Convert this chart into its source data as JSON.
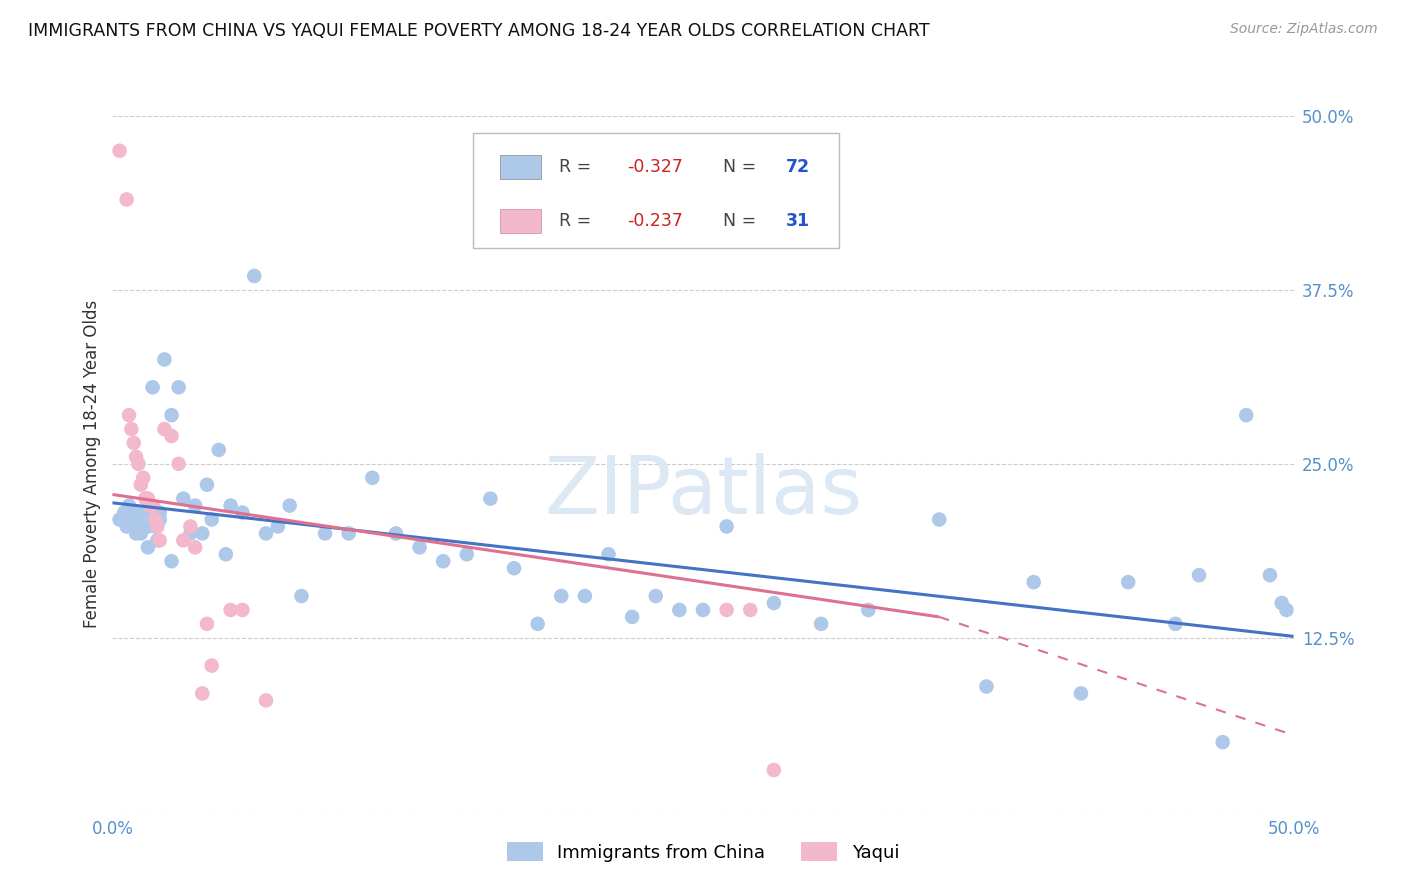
{
  "title": "IMMIGRANTS FROM CHINA VS YAQUI FEMALE POVERTY AMONG 18-24 YEAR OLDS CORRELATION CHART",
  "source": "Source: ZipAtlas.com",
  "ylabel": "Female Poverty Among 18-24 Year Olds",
  "xlim": [
    0.0,
    0.5
  ],
  "ylim": [
    0.0,
    0.5
  ],
  "yticks": [
    0.0,
    0.125,
    0.25,
    0.375,
    0.5
  ],
  "yticklabels": [
    "",
    "12.5%",
    "25.0%",
    "37.5%",
    "50.0%"
  ],
  "xtick_labels_show": [
    "0.0%",
    "50.0%"
  ],
  "watermark_text": "ZIPatlas",
  "blue_color": "#adc8e8",
  "pink_color": "#f4b8cc",
  "blue_line_color": "#4472c4",
  "pink_line_color": "#e07090",
  "blue_R": -0.327,
  "blue_N": 72,
  "pink_R": -0.237,
  "pink_N": 31,
  "blue_line_x0": 0.0,
  "blue_line_y0": 0.222,
  "blue_line_x1": 0.5,
  "blue_line_y1": 0.126,
  "pink_line_x0": 0.0,
  "pink_line_y0": 0.228,
  "pink_line_x1_solid": 0.35,
  "pink_line_y1_solid": 0.14,
  "pink_line_x1_dash": 0.5,
  "pink_line_y1_dash": 0.055,
  "china_x": [
    0.003,
    0.005,
    0.006,
    0.007,
    0.008,
    0.009,
    0.01,
    0.011,
    0.012,
    0.013,
    0.014,
    0.015,
    0.016,
    0.017,
    0.018,
    0.019,
    0.02,
    0.022,
    0.025,
    0.028,
    0.03,
    0.033,
    0.035,
    0.038,
    0.04,
    0.042,
    0.045,
    0.048,
    0.05,
    0.055,
    0.06,
    0.065,
    0.07,
    0.075,
    0.08,
    0.09,
    0.1,
    0.11,
    0.12,
    0.13,
    0.14,
    0.15,
    0.16,
    0.17,
    0.18,
    0.19,
    0.2,
    0.21,
    0.22,
    0.23,
    0.24,
    0.25,
    0.26,
    0.28,
    0.3,
    0.32,
    0.35,
    0.37,
    0.39,
    0.41,
    0.43,
    0.45,
    0.46,
    0.47,
    0.48,
    0.49,
    0.495,
    0.497,
    0.01,
    0.015,
    0.02,
    0.025
  ],
  "china_y": [
    0.21,
    0.215,
    0.205,
    0.22,
    0.215,
    0.21,
    0.205,
    0.215,
    0.2,
    0.21,
    0.225,
    0.205,
    0.215,
    0.305,
    0.205,
    0.195,
    0.21,
    0.325,
    0.285,
    0.305,
    0.225,
    0.2,
    0.22,
    0.2,
    0.235,
    0.21,
    0.26,
    0.185,
    0.22,
    0.215,
    0.385,
    0.2,
    0.205,
    0.22,
    0.155,
    0.2,
    0.2,
    0.24,
    0.2,
    0.19,
    0.18,
    0.185,
    0.225,
    0.175,
    0.135,
    0.155,
    0.155,
    0.185,
    0.14,
    0.155,
    0.145,
    0.145,
    0.205,
    0.15,
    0.135,
    0.145,
    0.21,
    0.09,
    0.165,
    0.085,
    0.165,
    0.135,
    0.17,
    0.05,
    0.285,
    0.17,
    0.15,
    0.145,
    0.2,
    0.19,
    0.215,
    0.18
  ],
  "yaqui_x": [
    0.003,
    0.006,
    0.007,
    0.008,
    0.009,
    0.01,
    0.011,
    0.012,
    0.013,
    0.014,
    0.015,
    0.016,
    0.017,
    0.018,
    0.019,
    0.02,
    0.022,
    0.025,
    0.028,
    0.03,
    0.033,
    0.035,
    0.038,
    0.04,
    0.042,
    0.05,
    0.055,
    0.065,
    0.26,
    0.27,
    0.28
  ],
  "yaqui_y": [
    0.475,
    0.44,
    0.285,
    0.275,
    0.265,
    0.255,
    0.25,
    0.235,
    0.24,
    0.225,
    0.225,
    0.22,
    0.22,
    0.21,
    0.205,
    0.195,
    0.275,
    0.27,
    0.25,
    0.195,
    0.205,
    0.19,
    0.085,
    0.135,
    0.105,
    0.145,
    0.145,
    0.08,
    0.145,
    0.145,
    0.03
  ]
}
